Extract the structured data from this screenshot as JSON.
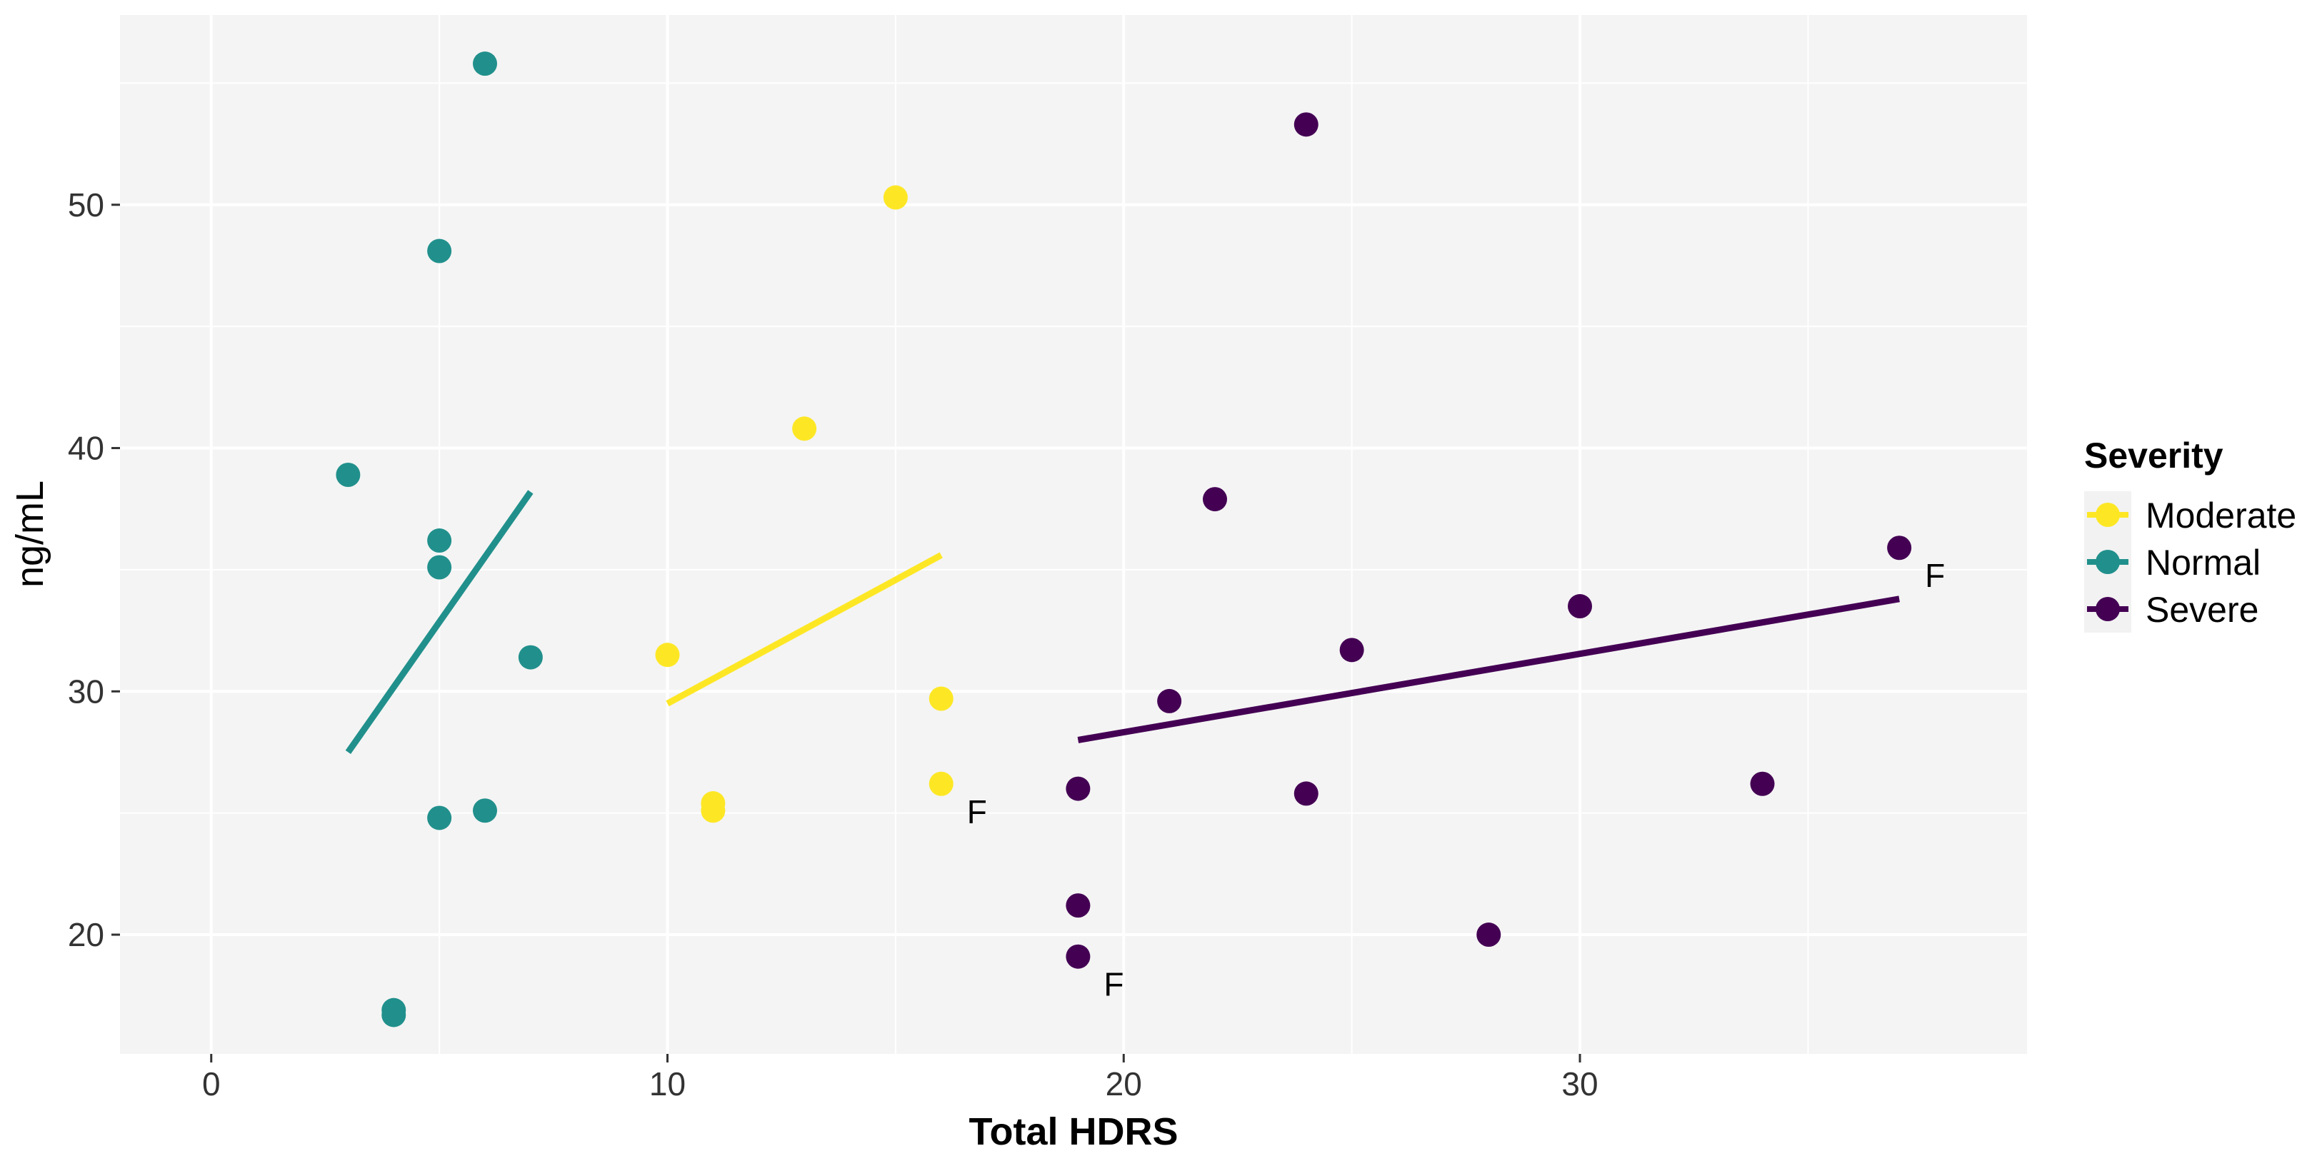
{
  "chart_data": {
    "type": "scatter",
    "xlabel": "Total HDRS",
    "ylabel": "ng/mL",
    "xlim": [
      -2,
      39.8
    ],
    "ylim": [
      15.1,
      57.8
    ],
    "x_ticks": [
      0,
      10,
      20,
      30
    ],
    "y_ticks": [
      20,
      30,
      40,
      50
    ],
    "grid": true,
    "legend": {
      "title": "Severity",
      "placement": "right",
      "entries": [
        "Moderate",
        "Normal",
        "Severe"
      ]
    },
    "colors": {
      "Moderate": "#fde725",
      "Normal": "#21908c",
      "Severe": "#440154"
    },
    "series": [
      {
        "name": "Moderate",
        "points": [
          [
            10,
            31.5
          ],
          [
            11,
            25.4
          ],
          [
            11,
            25.1
          ],
          [
            13,
            40.8
          ],
          [
            15,
            50.3
          ],
          [
            16,
            29.7
          ],
          [
            16,
            26.2
          ]
        ],
        "trend": [
          [
            10,
            29.5
          ],
          [
            16,
            35.6
          ]
        ]
      },
      {
        "name": "Normal",
        "points": [
          [
            3,
            38.9
          ],
          [
            4,
            16.9
          ],
          [
            4,
            16.7
          ],
          [
            5,
            48.1
          ],
          [
            5,
            36.2
          ],
          [
            5,
            35.1
          ],
          [
            5,
            24.8
          ],
          [
            6,
            55.8
          ],
          [
            6,
            25.1
          ],
          [
            7,
            31.4
          ]
        ],
        "trend": [
          [
            3,
            27.5
          ],
          [
            7,
            38.2
          ]
        ]
      },
      {
        "name": "Severe",
        "points": [
          [
            19,
            26.0
          ],
          [
            19,
            21.2
          ],
          [
            19,
            19.1
          ],
          [
            21,
            29.6
          ],
          [
            22,
            37.9
          ],
          [
            24,
            53.3
          ],
          [
            24,
            25.8
          ],
          [
            25,
            31.7
          ],
          [
            28,
            20.0
          ],
          [
            30,
            33.5
          ],
          [
            34,
            26.2
          ],
          [
            37,
            35.9
          ]
        ],
        "trend": [
          [
            19,
            28.0
          ],
          [
            37,
            33.8
          ]
        ]
      }
    ],
    "annotations": [
      {
        "text": "F",
        "x": 16,
        "y": 26.2
      },
      {
        "text": "F",
        "x": 19,
        "y": 19.1
      },
      {
        "text": "F",
        "x": 37,
        "y": 35.9
      }
    ]
  }
}
